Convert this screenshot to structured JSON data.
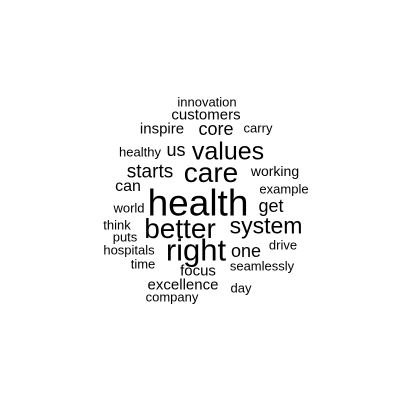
{
  "word_cloud": {
    "text_color": "#000000",
    "background": "#ffffff",
    "words": [
      {
        "text": "innovation",
        "weight": 1
      },
      {
        "text": "customers",
        "weight": 1.6
      },
      {
        "text": "inspire",
        "weight": 1.6
      },
      {
        "text": "core",
        "weight": 2.2
      },
      {
        "text": "carry",
        "weight": 1.2
      },
      {
        "text": "healthy",
        "weight": 1.2
      },
      {
        "text": "us",
        "weight": 2.2
      },
      {
        "text": "values",
        "weight": 3.6
      },
      {
        "text": "starts",
        "weight": 2.6
      },
      {
        "text": "care",
        "weight": 4.2
      },
      {
        "text": "working",
        "weight": 1.4
      },
      {
        "text": "can",
        "weight": 1.8
      },
      {
        "text": "example",
        "weight": 1.3
      },
      {
        "text": "health",
        "weight": 6
      },
      {
        "text": "world",
        "weight": 1.2
      },
      {
        "text": "get",
        "weight": 2.2
      },
      {
        "text": "better",
        "weight": 4.2
      },
      {
        "text": "system",
        "weight": 3.2
      },
      {
        "text": "think",
        "weight": 1.2
      },
      {
        "text": "puts",
        "weight": 1.2
      },
      {
        "text": "hospitals",
        "weight": 1.2
      },
      {
        "text": "right",
        "weight": 4.6
      },
      {
        "text": "one",
        "weight": 2.2
      },
      {
        "text": "drive",
        "weight": 1.2
      },
      {
        "text": "time",
        "weight": 1.2
      },
      {
        "text": "focus",
        "weight": 1.6
      },
      {
        "text": "seamlessly",
        "weight": 1.2
      },
      {
        "text": "excellence",
        "weight": 1.6
      },
      {
        "text": "day",
        "weight": 1.2
      },
      {
        "text": "company",
        "weight": 1.1
      }
    ]
  }
}
